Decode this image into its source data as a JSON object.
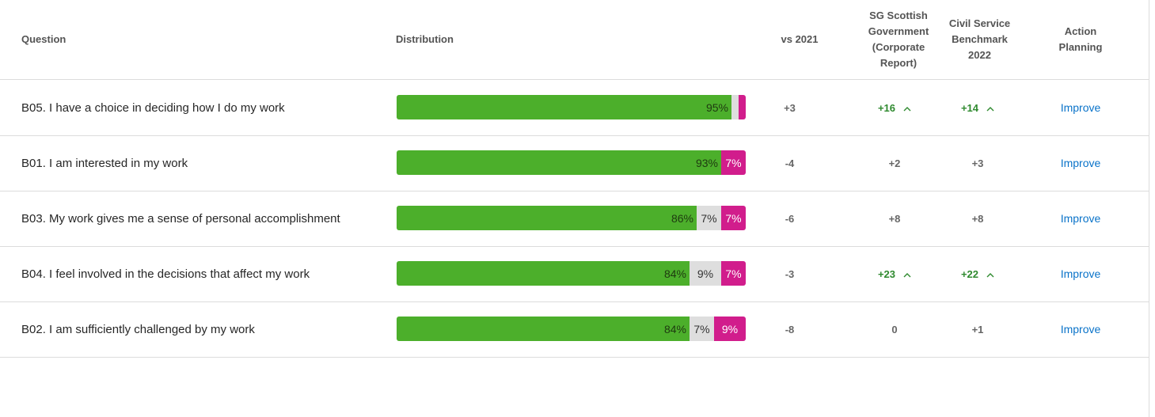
{
  "header": {
    "question": "Question",
    "distribution": "Distribution",
    "vs2021": "vs 2021",
    "sg": "SG Scottish\nGovernment\n(Corporate\nReport)",
    "cs": "Civil Service\nBenchmark\n2022",
    "ap": "Action\nPlanning"
  },
  "colors": {
    "positive": "#4caf2b",
    "neutral": "#dedede",
    "negative": "#d11d8c",
    "significant": "#2f8a2f",
    "link": "#0a73c9"
  },
  "rows": [
    {
      "question": "B05. I have a choice in deciding how I do my work",
      "positive": 95,
      "neutral": 2,
      "negative": 2,
      "positive_label": "95%",
      "neutral_label": "",
      "negative_label": "",
      "vs2021": "+3",
      "sg": "+16",
      "sg_sig": true,
      "cs": "+14",
      "cs_sig": true,
      "action": "Improve"
    },
    {
      "question": "B01. I am interested in my work",
      "positive": 93,
      "neutral": 0,
      "negative": 7,
      "positive_label": "93%",
      "neutral_label": "",
      "negative_label": "7%",
      "vs2021": "-4",
      "sg": "+2",
      "sg_sig": false,
      "cs": "+3",
      "cs_sig": false,
      "action": "Improve"
    },
    {
      "question": "B03. My work gives me a sense of personal accomplishment",
      "positive": 86,
      "neutral": 7,
      "negative": 7,
      "positive_label": "86%",
      "neutral_label": "7%",
      "negative_label": "7%",
      "vs2021": "-6",
      "sg": "+8",
      "sg_sig": false,
      "cs": "+8",
      "cs_sig": false,
      "action": "Improve"
    },
    {
      "question": "B04. I feel involved in the decisions that affect my work",
      "positive": 84,
      "neutral": 9,
      "negative": 7,
      "positive_label": "84%",
      "neutral_label": "9%",
      "negative_label": "7%",
      "vs2021": "-3",
      "sg": "+23",
      "sg_sig": true,
      "cs": "+22",
      "cs_sig": true,
      "action": "Improve"
    },
    {
      "question": "B02. I am sufficiently challenged by my work",
      "positive": 84,
      "neutral": 7,
      "negative": 9,
      "positive_label": "84%",
      "neutral_label": "7%",
      "negative_label": "9%",
      "vs2021": "-8",
      "sg": "0",
      "sg_sig": false,
      "cs": "+1",
      "cs_sig": false,
      "action": "Improve"
    }
  ]
}
